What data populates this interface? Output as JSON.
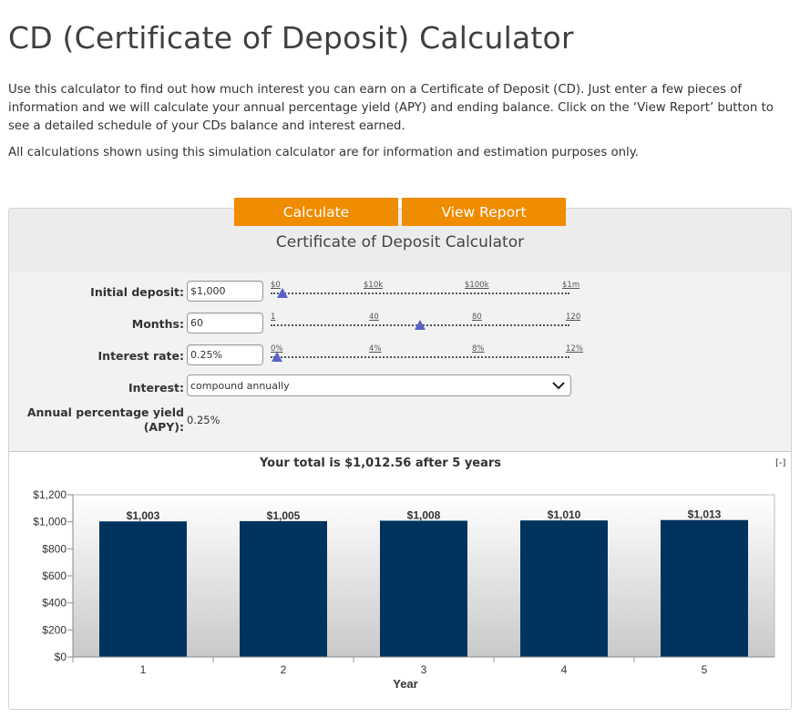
{
  "page": {
    "title": "CD (Certificate of Deposit) Calculator",
    "intro": "Use this calculator to find out how much interest you can earn on a Certificate of Deposit (CD). Just enter a few pieces of information and we will calculate your annual percentage yield (APY) and ending balance. Click on the ‘View Report’ button to see a detailed schedule of your CDs balance and interest earned.",
    "disclaimer": "All calculations shown using this simulation calculator are for information and estimation purposes only."
  },
  "buttons": {
    "calculate": "Calculate",
    "view_report": "View Report"
  },
  "calculator": {
    "title": "Certificate of Deposit Calculator",
    "fields": {
      "initial_deposit": {
        "label": "Initial deposit:",
        "value": "$1,000",
        "ticks": [
          "$0",
          "$10k",
          "$100k",
          "$1m"
        ],
        "level": 0.04
      },
      "months": {
        "label": "Months:",
        "value": "60",
        "ticks": [
          "1",
          "40",
          "80",
          "120"
        ],
        "level": 0.5
      },
      "interest_rate": {
        "label": "Interest rate:",
        "value": "0.25%",
        "ticks": [
          "0%",
          "4%",
          "8%",
          "12%"
        ],
        "level": 0.02
      },
      "interest": {
        "label": "Interest:",
        "value": "compound annually"
      },
      "apy": {
        "label_line1": "Annual percentage yield",
        "label_line2": "(APY):",
        "value": "0.25%"
      }
    }
  },
  "result": {
    "summary": "Your total is $1,012.56 after 5 years",
    "collapse_label": "[-]"
  },
  "colors": {
    "accent": "#ef8c00",
    "bar": "#00345f",
    "thumb": "#5b61c9"
  },
  "chart_data": {
    "type": "bar",
    "categories": [
      "1",
      "2",
      "3",
      "4",
      "5"
    ],
    "values": [
      1003,
      1005,
      1008,
      1010,
      1013
    ],
    "data_labels": [
      "$1,003",
      "$1,005",
      "$1,008",
      "$1,010",
      "$1,013"
    ],
    "xlabel": "Year",
    "ylabel": "",
    "ylim": [
      0,
      1200
    ],
    "yticks": [
      0,
      200,
      400,
      600,
      800,
      1000,
      1200
    ],
    "ytick_labels": [
      "$0",
      "$200",
      "$400",
      "$600",
      "$800",
      "$1,000",
      "$1,200"
    ],
    "grid": false,
    "legend": "none"
  }
}
